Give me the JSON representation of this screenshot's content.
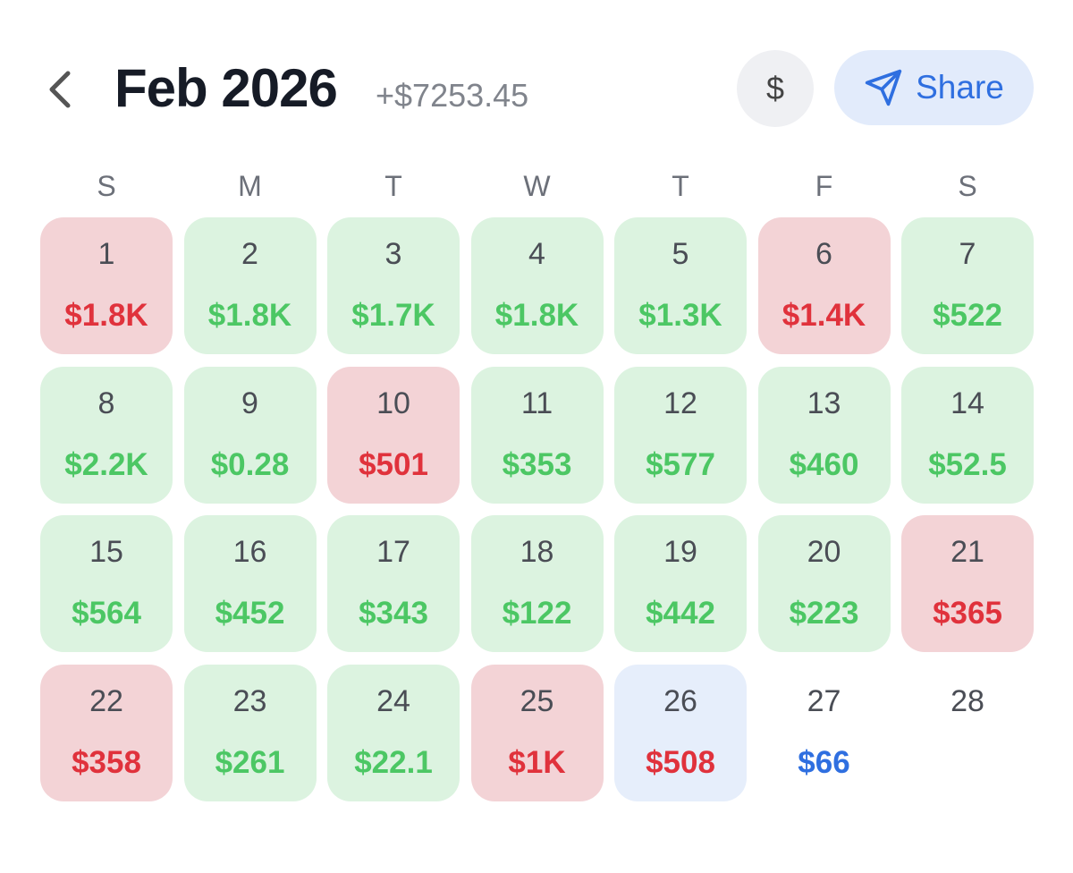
{
  "header": {
    "title": "Feb 2026",
    "total": "+$7253.45",
    "currency_button": "$",
    "share_button": "Share"
  },
  "weekdays": [
    "S",
    "M",
    "T",
    "W",
    "T",
    "F",
    "S"
  ],
  "days": [
    {
      "day": "1",
      "amount": "$1.8K",
      "tone": "loss"
    },
    {
      "day": "2",
      "amount": "$1.8K",
      "tone": "gain"
    },
    {
      "day": "3",
      "amount": "$1.7K",
      "tone": "gain"
    },
    {
      "day": "4",
      "amount": "$1.8K",
      "tone": "gain"
    },
    {
      "day": "5",
      "amount": "$1.3K",
      "tone": "gain"
    },
    {
      "day": "6",
      "amount": "$1.4K",
      "tone": "loss"
    },
    {
      "day": "7",
      "amount": "$522",
      "tone": "gain"
    },
    {
      "day": "8",
      "amount": "$2.2K",
      "tone": "gain"
    },
    {
      "day": "9",
      "amount": "$0.28",
      "tone": "gain"
    },
    {
      "day": "10",
      "amount": "$501",
      "tone": "loss"
    },
    {
      "day": "11",
      "amount": "$353",
      "tone": "gain"
    },
    {
      "day": "12",
      "amount": "$577",
      "tone": "gain"
    },
    {
      "day": "13",
      "amount": "$460",
      "tone": "gain"
    },
    {
      "day": "14",
      "amount": "$52.5",
      "tone": "gain"
    },
    {
      "day": "15",
      "amount": "$564",
      "tone": "gain"
    },
    {
      "day": "16",
      "amount": "$452",
      "tone": "gain"
    },
    {
      "day": "17",
      "amount": "$343",
      "tone": "gain"
    },
    {
      "day": "18",
      "amount": "$122",
      "tone": "gain"
    },
    {
      "day": "19",
      "amount": "$442",
      "tone": "gain"
    },
    {
      "day": "20",
      "amount": "$223",
      "tone": "gain"
    },
    {
      "day": "21",
      "amount": "$365",
      "tone": "loss"
    },
    {
      "day": "22",
      "amount": "$358",
      "tone": "loss"
    },
    {
      "day": "23",
      "amount": "$261",
      "tone": "gain"
    },
    {
      "day": "24",
      "amount": "$22.1",
      "tone": "gain"
    },
    {
      "day": "25",
      "amount": "$1K",
      "tone": "loss"
    },
    {
      "day": "26",
      "amount": "$508",
      "tone": "today"
    },
    {
      "day": "27",
      "amount": "$66",
      "tone": "pending"
    },
    {
      "day": "28",
      "tone": "empty"
    }
  ]
}
